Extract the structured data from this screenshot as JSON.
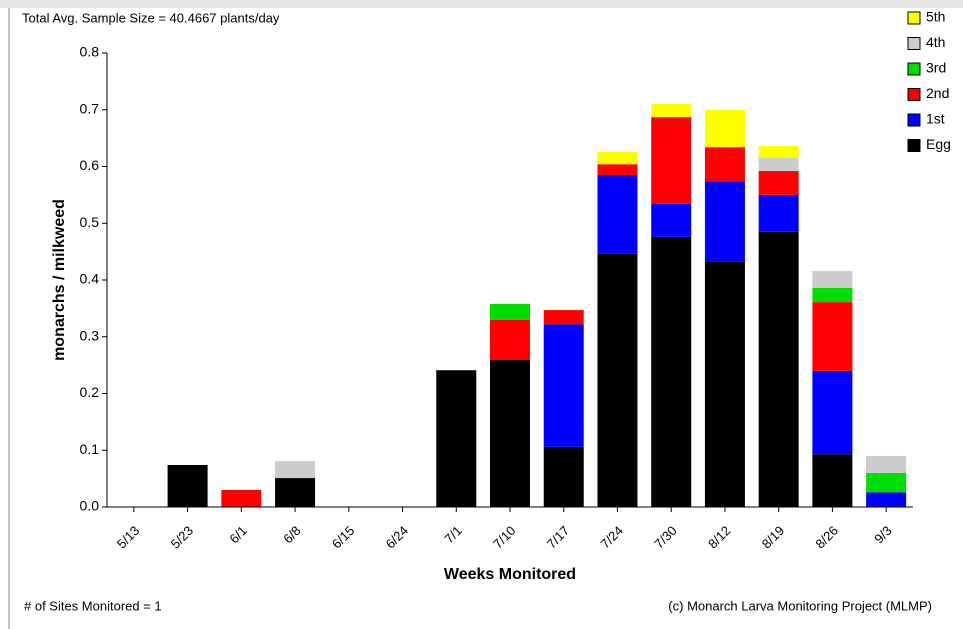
{
  "chart_data": {
    "type": "bar",
    "stacked": true,
    "subtitle": "Total Avg. Sample Size = 40.4667 plants/day",
    "note_left": "# of Sites Monitored = 1",
    "note_right": "(c) Monarch Larva Monitoring Project (MLMP)",
    "xlabel": "Weeks Monitored",
    "ylabel": "monarchs / milkweed",
    "categories": [
      "5/13",
      "5/23",
      "6/1",
      "6/8",
      "6/15",
      "6/24",
      "7/1",
      "7/10",
      "7/17",
      "7/24",
      "7/30",
      "8/12",
      "8/19",
      "8/26",
      "9/3"
    ],
    "series": [
      {
        "name": "Egg",
        "color": "#000000",
        "values": [
          0,
          0.074,
          0,
          0.051,
          0,
          0,
          0.241,
          0.259,
          0.106,
          0.446,
          0.476,
          0.433,
          0.485,
          0.093,
          0
        ]
      },
      {
        "name": "1st",
        "color": "#0000ff",
        "values": [
          0,
          0,
          0,
          0,
          0,
          0,
          0,
          0,
          0.216,
          0.139,
          0.058,
          0.141,
          0.065,
          0.147,
          0.026
        ]
      },
      {
        "name": "2nd",
        "color": "#ff0000",
        "values": [
          0,
          0,
          0.03,
          0,
          0,
          0,
          0,
          0.071,
          0.025,
          0.019,
          0.153,
          0.06,
          0.042,
          0.121,
          0
        ]
      },
      {
        "name": "3rd",
        "color": "#00dd00",
        "values": [
          0,
          0,
          0,
          0,
          0,
          0,
          0,
          0.028,
          0,
          0,
          0,
          0,
          0,
          0.025,
          0.034
        ]
      },
      {
        "name": "4th",
        "color": "#cccccc",
        "values": [
          0,
          0,
          0,
          0.03,
          0,
          0,
          0,
          0,
          0,
          0,
          0,
          0,
          0.023,
          0.03,
          0.03
        ]
      },
      {
        "name": "5th",
        "color": "#ffff00",
        "values": [
          0,
          0,
          0,
          0,
          0,
          0,
          0,
          0,
          0,
          0.022,
          0.023,
          0.066,
          0.021,
          0,
          0
        ]
      }
    ],
    "ylim": [
      0,
      0.8
    ],
    "yticks": [
      {
        "value": 0,
        "label": "0.0"
      },
      0.1,
      0.2,
      0.3,
      0.4,
      0.5,
      0.6,
      0.7,
      0.8
    ],
    "legend": "top-right"
  }
}
